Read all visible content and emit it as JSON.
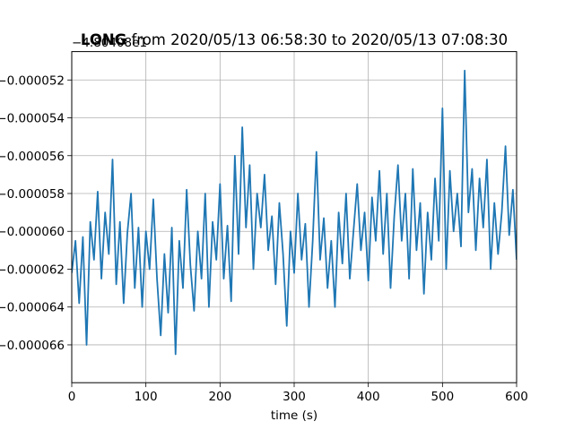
{
  "chart_data": {
    "type": "line",
    "title_prefix": "LONG",
    "title_rest": " from 2020/05/13 06:58:30 to 2020/05/13 07:08:30",
    "offset_label": "−4.80408e1",
    "xlabel": "time (s)",
    "ylabel": "",
    "xlim": [
      0,
      600
    ],
    "ylim": [
      -6.8e-05,
      -5.05e-05
    ],
    "grid": true,
    "series_color": "#1f77b4",
    "x_ticks": [
      {
        "value": 0,
        "label": "0"
      },
      {
        "value": 100,
        "label": "100"
      },
      {
        "value": 200,
        "label": "200"
      },
      {
        "value": 300,
        "label": "300"
      },
      {
        "value": 400,
        "label": "400"
      },
      {
        "value": 500,
        "label": "500"
      },
      {
        "value": 600,
        "label": "600"
      }
    ],
    "y_ticks": [
      {
        "value": -5.2e-05,
        "label": "−0.000052"
      },
      {
        "value": -5.4e-05,
        "label": "−0.000054"
      },
      {
        "value": -5.6e-05,
        "label": "−0.000056"
      },
      {
        "value": -5.8e-05,
        "label": "−0.000058"
      },
      {
        "value": -6e-05,
        "label": "−0.000060"
      },
      {
        "value": -6.2e-05,
        "label": "−0.000062"
      },
      {
        "value": -6.4e-05,
        "label": "−0.000064"
      },
      {
        "value": -6.6e-05,
        "label": "−0.000066"
      }
    ],
    "series": [
      {
        "x": [
          0,
          5,
          10,
          15,
          20,
          25,
          30,
          35,
          40,
          45,
          50,
          55,
          60,
          65,
          70,
          75,
          80,
          85,
          90,
          95,
          100,
          105,
          110,
          115,
          120,
          125,
          130,
          135,
          140,
          145,
          150,
          155,
          160,
          165,
          170,
          175,
          180,
          185,
          190,
          195,
          200,
          205,
          210,
          215,
          220,
          225,
          230,
          235,
          240,
          245,
          250,
          255,
          260,
          265,
          270,
          275,
          280,
          285,
          290,
          295,
          300,
          305,
          310,
          315,
          320,
          325,
          330,
          335,
          340,
          345,
          350,
          355,
          360,
          365,
          370,
          375,
          380,
          385,
          390,
          395,
          400,
          405,
          410,
          415,
          420,
          425,
          430,
          435,
          440,
          445,
          450,
          455,
          460,
          465,
          470,
          475,
          480,
          485,
          490,
          495,
          500,
          505,
          510,
          515,
          520,
          525,
          530,
          535,
          540,
          545,
          550,
          555,
          560,
          565,
          570,
          575,
          580,
          585,
          590,
          595,
          600
        ],
        "y": [
          -6.22e-05,
          -6.05e-05,
          -6.38e-05,
          -6.03e-05,
          -6.6e-05,
          -5.95e-05,
          -6.15e-05,
          -5.79e-05,
          -6.25e-05,
          -5.9e-05,
          -6.12e-05,
          -5.62e-05,
          -6.28e-05,
          -5.95e-05,
          -6.38e-05,
          -6.01e-05,
          -5.8e-05,
          -6.3e-05,
          -5.98e-05,
          -6.4e-05,
          -6e-05,
          -6.2e-05,
          -5.83e-05,
          -6.25e-05,
          -6.55e-05,
          -6.12e-05,
          -6.43e-05,
          -5.98e-05,
          -6.65e-05,
          -6.05e-05,
          -6.3e-05,
          -5.78e-05,
          -6.18e-05,
          -6.42e-05,
          -6e-05,
          -6.25e-05,
          -5.8e-05,
          -6.4e-05,
          -5.95e-05,
          -6.15e-05,
          -5.75e-05,
          -6.25e-05,
          -5.97e-05,
          -6.37e-05,
          -5.6e-05,
          -6.12e-05,
          -5.45e-05,
          -5.98e-05,
          -5.65e-05,
          -6.2e-05,
          -5.8e-05,
          -5.98e-05,
          -5.7e-05,
          -6.1e-05,
          -5.92e-05,
          -6.28e-05,
          -5.85e-05,
          -6.12e-05,
          -6.5e-05,
          -6e-05,
          -6.22e-05,
          -5.8e-05,
          -6.15e-05,
          -5.96e-05,
          -6.4e-05,
          -6.05e-05,
          -5.58e-05,
          -6.15e-05,
          -5.93e-05,
          -6.3e-05,
          -6.05e-05,
          -6.4e-05,
          -5.9e-05,
          -6.17e-05,
          -5.8e-05,
          -6.25e-05,
          -6e-05,
          -5.75e-05,
          -6.1e-05,
          -5.9e-05,
          -6.26e-05,
          -5.82e-05,
          -6.05e-05,
          -5.68e-05,
          -6.12e-05,
          -5.8e-05,
          -6.3e-05,
          -5.92e-05,
          -5.65e-05,
          -6.05e-05,
          -5.8e-05,
          -6.25e-05,
          -5.67e-05,
          -6.1e-05,
          -5.85e-05,
          -6.33e-05,
          -5.9e-05,
          -6.15e-05,
          -5.72e-05,
          -6.05e-05,
          -5.35e-05,
          -6.2e-05,
          -5.68e-05,
          -6e-05,
          -5.8e-05,
          -6.08e-05,
          -5.15e-05,
          -5.9e-05,
          -5.67e-05,
          -6.1e-05,
          -5.72e-05,
          -5.98e-05,
          -5.62e-05,
          -6.2e-05,
          -5.85e-05,
          -6.12e-05,
          -5.9e-05,
          -5.55e-05,
          -6.02e-05,
          -5.78e-05,
          -6.15e-05
        ]
      }
    ]
  }
}
